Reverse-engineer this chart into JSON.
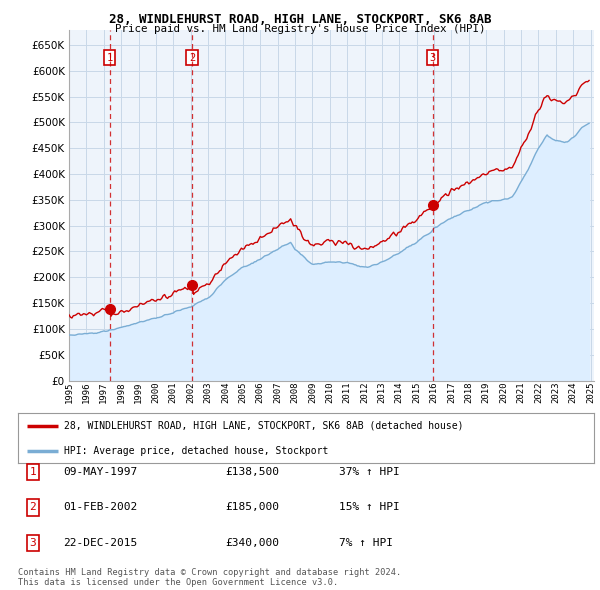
{
  "title1": "28, WINDLEHURST ROAD, HIGH LANE, STOCKPORT, SK6 8AB",
  "title2": "Price paid vs. HM Land Registry's House Price Index (HPI)",
  "legend_label1": "28, WINDLEHURST ROAD, HIGH LANE, STOCKPORT, SK6 8AB (detached house)",
  "legend_label2": "HPI: Average price, detached house, Stockport",
  "transactions": [
    {
      "num": 1,
      "date": "09-MAY-1997",
      "price": 138500,
      "pct": "37%",
      "dir": "↑"
    },
    {
      "num": 2,
      "date": "01-FEB-2002",
      "price": 185000,
      "pct": "15%",
      "dir": "↑"
    },
    {
      "num": 3,
      "date": "22-DEC-2015",
      "price": 340000,
      "pct": "7%",
      "dir": "↑"
    }
  ],
  "footnote1": "Contains HM Land Registry data © Crown copyright and database right 2024.",
  "footnote2": "This data is licensed under the Open Government Licence v3.0.",
  "ylim": [
    0,
    680000
  ],
  "ytick_vals": [
    0,
    50000,
    100000,
    150000,
    200000,
    250000,
    300000,
    350000,
    400000,
    450000,
    500000,
    550000,
    600000,
    650000
  ],
  "price_color": "#cc0000",
  "hpi_color": "#7aadd4",
  "hpi_fill_color": "#ddeeff",
  "vline_color": "#cc0000",
  "background_color": "#ffffff",
  "grid_color": "#c8d8e8",
  "chart_bg": "#eef4fb"
}
